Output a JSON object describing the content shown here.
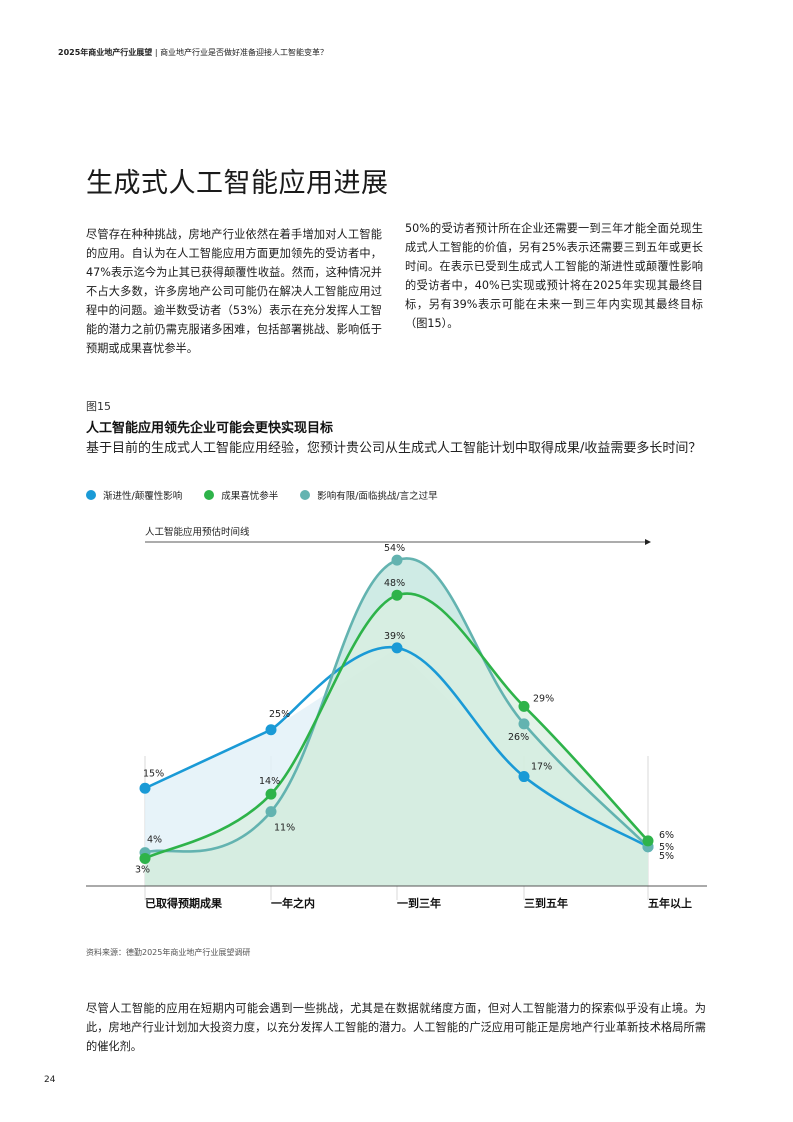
{
  "header": {
    "report": "2025年商业地产行业展望",
    "separator": "|",
    "subtitle": "商业地产行业是否做好准备迎接人工智能变革？"
  },
  "title": "生成式人工智能应用进展",
  "intro": {
    "col1": "尽管存在种种挑战，房地产行业依然在着手增加对人工智能的应用。自认为在人工智能应用方面更加领先的受访者中，47%表示迄今为止其已获得颠覆性收益。然而，这种情况并不占大多数，许多房地产公司可能仍在解决人工智能应用过程中的问题。逾半数受访者（53%）表示在充分发挥人工智能的潜力之前仍需克服诸多困难，包括部署挑战、影响低于预期或成果喜忧参半。",
    "col2": "50%的受访者预计所在企业还需要一到三年才能全面兑现生成式人工智能的价值，另有25%表示还需要三到五年或更长时间。在表示已受到生成式人工智能的渐进性或颠覆性影响的受访者中，40%已实现或预计将在2025年实现其最终目标，另有39%表示可能在未来一到三年内实现其最终目标（图15）。"
  },
  "figure": {
    "label": "图15",
    "title": "人工智能应用领先企业可能会更快实现目标",
    "question": "基于目前的生成式人工智能应用经验，您预计贵公司从生成式人工智能计划中取得成果/收益需要多长时间？"
  },
  "chart_data": {
    "type": "area",
    "timeline_label": "人工智能应用预估时间线",
    "categories": [
      "已取得预期成果",
      "一年之内",
      "一到三年",
      "三到五年",
      "五年以上"
    ],
    "series": [
      {
        "name": "渐进性/颠覆性影响",
        "color": "#1a9ad6",
        "fill": "#e3f1f8",
        "values": [
          15,
          25,
          39,
          17,
          5
        ],
        "labels": [
          "15%",
          "25%",
          "39%",
          "17%",
          "5%"
        ]
      },
      {
        "name": "成果喜忧参半",
        "color": "#2eb34a",
        "fill": "#d9efe0",
        "values": [
          3,
          14,
          48,
          29,
          6
        ],
        "labels": [
          "3%",
          "14%",
          "48%",
          "29%",
          "6%"
        ]
      },
      {
        "name": "影响有限/面临挑战/言之过早",
        "color": "#63b3b0",
        "fill": "#bfe4dc",
        "values": [
          4,
          11,
          54,
          26,
          5
        ],
        "labels": [
          "4%",
          "11%",
          "54%",
          "26%",
          "5%"
        ]
      }
    ],
    "ylim": [
      0,
      60
    ],
    "legend_position": "top-left",
    "grid": false
  },
  "source": "资料来源：德勤2025年商业地产行业展望调研",
  "closing": "尽管人工智能的应用在短期内可能会遇到一些挑战，尤其是在数据就绪度方面，但对人工智能潜力的探索似乎没有止境。为此，房地产行业计划加大投资力度，以充分发挥人工智能的潜力。人工智能的广泛应用可能正是房地产行业革新技术格局所需的催化剂。",
  "page_number": "24"
}
